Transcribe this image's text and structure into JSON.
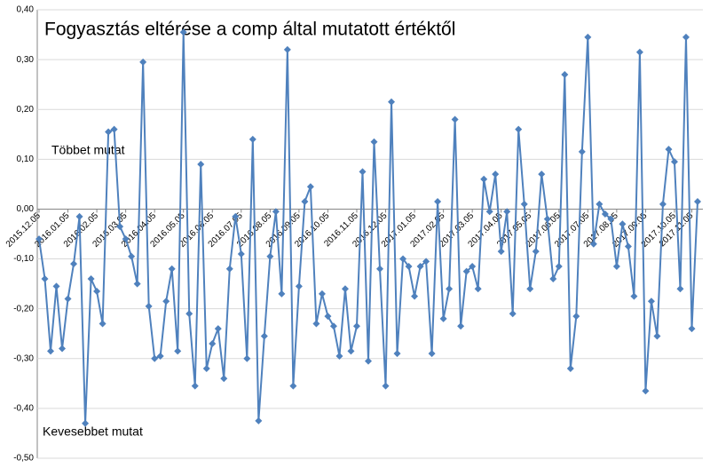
{
  "chart_data": {
    "type": "line",
    "title": "Fogyasztás eltérése a comp által mutatott értéktől",
    "annotations": [
      "Többet mutat",
      "Kevesebbet mutat"
    ],
    "categories": [
      "2015.12.05",
      null,
      null,
      null,
      null,
      "2016.01.05",
      null,
      null,
      null,
      null,
      "2016.02.05",
      null,
      null,
      null,
      null,
      "2016.03.05",
      null,
      null,
      null,
      null,
      "2016.04.05",
      null,
      null,
      null,
      null,
      "2016.05.05",
      null,
      null,
      null,
      null,
      "2016.06.05",
      null,
      null,
      null,
      null,
      "2016.07.05",
      null,
      null,
      null,
      null,
      "2016.08.05",
      null,
      null,
      null,
      null,
      "2016.09.05",
      null,
      null,
      null,
      null,
      "2016.10.05",
      null,
      null,
      null,
      null,
      "2016.11.05",
      null,
      null,
      null,
      null,
      "2016.12.05",
      null,
      null,
      null,
      null,
      "2017.01.05",
      null,
      null,
      null,
      null,
      "2017.02.05",
      null,
      null,
      null,
      null,
      "2017.03.05",
      null,
      null,
      null,
      null,
      "2017.04.05",
      null,
      null,
      null,
      null,
      "2017.05.05",
      null,
      null,
      null,
      null,
      "2017.06.05",
      null,
      null,
      null,
      null,
      "2017.07.05",
      null,
      null,
      null,
      null,
      "2017.08.05",
      null,
      null,
      null,
      null,
      "2017.09.05",
      null,
      null,
      null,
      null,
      "2017.10.05",
      null,
      null,
      "2017.11.05",
      null
    ],
    "series": [
      {
        "color": "#4f81bd",
        "values": [
          -0.06,
          -0.14,
          -0.285,
          -0.155,
          -0.28,
          -0.18,
          -0.11,
          -0.015,
          -0.43,
          -0.14,
          -0.165,
          -0.23,
          0.155,
          0.16,
          -0.035,
          -0.06,
          -0.095,
          -0.15,
          0.295,
          -0.195,
          -0.3,
          -0.295,
          -0.185,
          -0.12,
          -0.285,
          0.355,
          -0.21,
          -0.355,
          0.09,
          -0.32,
          -0.27,
          -0.24,
          -0.34,
          -0.12,
          -0.015,
          -0.09,
          -0.3,
          0.14,
          -0.425,
          -0.255,
          -0.095,
          -0.005,
          -0.17,
          0.32,
          -0.355,
          -0.155,
          0.015,
          0.045,
          -0.23,
          -0.17,
          -0.215,
          -0.235,
          -0.295,
          -0.16,
          -0.285,
          -0.235,
          0.075,
          -0.305,
          0.135,
          -0.12,
          -0.355,
          0.215,
          -0.29,
          -0.1,
          -0.115,
          -0.175,
          -0.115,
          -0.105,
          -0.29,
          0.015,
          -0.22,
          -0.16,
          0.18,
          -0.235,
          -0.125,
          -0.115,
          -0.16,
          0.06,
          -0.005,
          0.07,
          -0.085,
          -0.005,
          -0.21,
          0.16,
          0.01,
          -0.16,
          -0.085,
          0.07,
          -0.02,
          -0.14,
          -0.115,
          0.27,
          -0.32,
          -0.215,
          0.115,
          0.345,
          -0.07,
          0.01,
          -0.01,
          -0.02,
          -0.115,
          -0.03,
          -0.075,
          -0.175,
          0.315,
          -0.365,
          -0.185,
          -0.255,
          0.01,
          0.12,
          0.095,
          -0.16,
          0.345,
          -0.24,
          0.015
        ]
      }
    ],
    "ylim": [
      -0.5,
      0.4
    ],
    "yticks": [
      {
        "value": 0.4,
        "label": "0,40"
      },
      {
        "value": 0.3,
        "label": "0,30"
      },
      {
        "value": 0.2,
        "label": "0,20"
      },
      {
        "value": 0.1,
        "label": "0,10"
      },
      {
        "value": 0,
        "label": "0,00"
      },
      {
        "value": -0.1,
        "label": "-0,10"
      },
      {
        "value": -0.2,
        "label": "-0,20"
      },
      {
        "value": -0.3,
        "label": "-0,30"
      },
      {
        "value": -0.4,
        "label": "-0,40"
      },
      {
        "value": -0.5,
        "label": "-0,50"
      }
    ],
    "grid": true
  }
}
